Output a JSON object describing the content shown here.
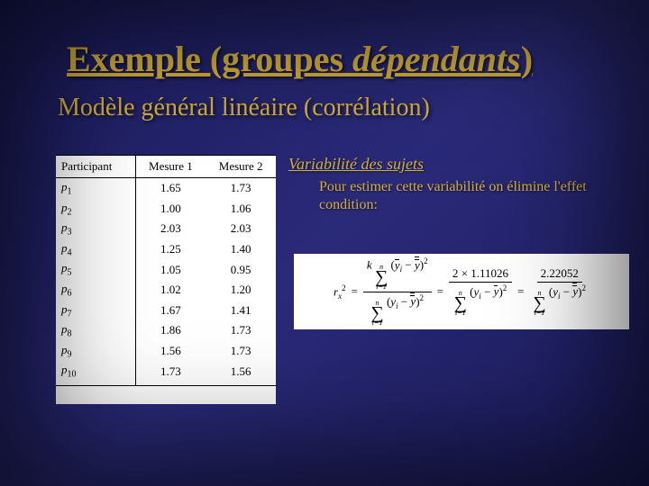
{
  "title_prefix": "Exemple (groupes ",
  "title_italic": "dépendants",
  "title_suffix": ")",
  "subtitle": "Modèle général linéaire (corrélation)",
  "section_heading": "Variabilité des sujets",
  "body_text": "Pour estimer cette variabilité on élimine l'effet condition:",
  "table": {
    "headers": [
      "Participant",
      "Mesure 1",
      "Mesure 2"
    ],
    "rows": [
      {
        "p": "p",
        "sub": "1",
        "m1": "1.65",
        "m2": "1.73"
      },
      {
        "p": "p",
        "sub": "2",
        "m1": "1.00",
        "m2": "1.06"
      },
      {
        "p": "p",
        "sub": "3",
        "m1": "2.03",
        "m2": "2.03"
      },
      {
        "p": "p",
        "sub": "4",
        "m1": "1.25",
        "m2": "1.40"
      },
      {
        "p": "p",
        "sub": "5",
        "m1": "1.05",
        "m2": "0.95"
      },
      {
        "p": "p",
        "sub": "6",
        "m1": "1.02",
        "m2": "1.20"
      },
      {
        "p": "p",
        "sub": "7",
        "m1": "1.67",
        "m2": "1.41"
      },
      {
        "p": "p",
        "sub": "8",
        "m1": "1.86",
        "m2": "1.73"
      },
      {
        "p": "p",
        "sub": "9",
        "m1": "1.56",
        "m2": "1.73"
      },
      {
        "p": "p",
        "sub": "10",
        "m1": "1.73",
        "m2": "1.56"
      }
    ]
  },
  "formula": {
    "lhs_base": "r",
    "lhs_sub": "x",
    "lhs_sup": "2",
    "k": "k",
    "n": "n",
    "i_start": "i=1",
    "num2_prefix": "2 × ",
    "num2_val": "1.11026",
    "num3": "2.22052"
  },
  "colors": {
    "gold": "#d4af37",
    "bg_dark": "#1a1a5a"
  }
}
